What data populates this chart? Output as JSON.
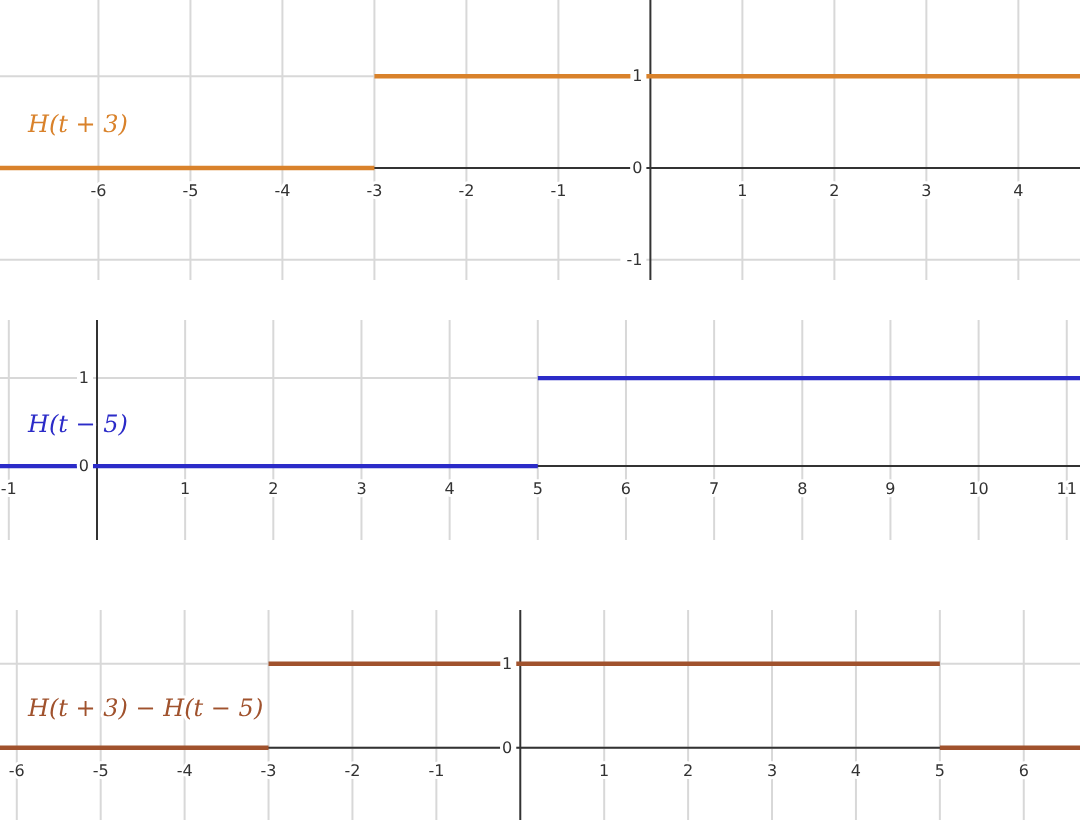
{
  "chart_data": [
    {
      "type": "line",
      "xlim": [
        -7.07,
        4.67
      ],
      "ylim": [
        -1.22,
        1.83
      ],
      "xticks": [
        -6,
        -5,
        -4,
        -3,
        -2,
        -1,
        1,
        2,
        3,
        4
      ],
      "yticks": [
        -1,
        0,
        1
      ],
      "grid": true,
      "marker": "none",
      "line_style": "solid",
      "series": [
        {
          "name": "H(t + 3)",
          "color": "#d9822b",
          "x": [
            -7.07,
            -3,
            null,
            -3,
            4.67
          ],
          "values": [
            0,
            0,
            null,
            1,
            1
          ]
        }
      ]
    },
    {
      "type": "line",
      "xlim": [
        -1.1,
        11.15
      ],
      "ylim": [
        -0.84,
        1.66
      ],
      "xticks": [
        -1,
        1,
        2,
        3,
        4,
        5,
        6,
        7,
        8,
        9,
        10,
        11
      ],
      "yticks": [
        0,
        1
      ],
      "grid": true,
      "marker": "none",
      "line_style": "solid",
      "series": [
        {
          "name": "H(t − 5)",
          "color": "#2b2bc8",
          "x": [
            -1.1,
            5,
            null,
            5,
            11.15
          ],
          "values": [
            0,
            0,
            null,
            1,
            1
          ]
        }
      ]
    },
    {
      "type": "line",
      "xlim": [
        -6.2,
        6.67
      ],
      "ylim": [
        -0.86,
        1.64
      ],
      "xticks": [
        -6,
        -5,
        -4,
        -3,
        -2,
        -1,
        1,
        2,
        3,
        4,
        5,
        6
      ],
      "yticks": [
        0,
        1
      ],
      "grid": true,
      "marker": "none",
      "line_style": "solid",
      "series": [
        {
          "name": "H(t + 3) − H(t − 5)",
          "color": "#a0522d",
          "x": [
            -6.2,
            -3,
            null,
            -3,
            5,
            null,
            5,
            6.67
          ],
          "values": [
            0,
            0,
            null,
            1,
            1,
            null,
            0,
            0
          ]
        }
      ]
    }
  ]
}
